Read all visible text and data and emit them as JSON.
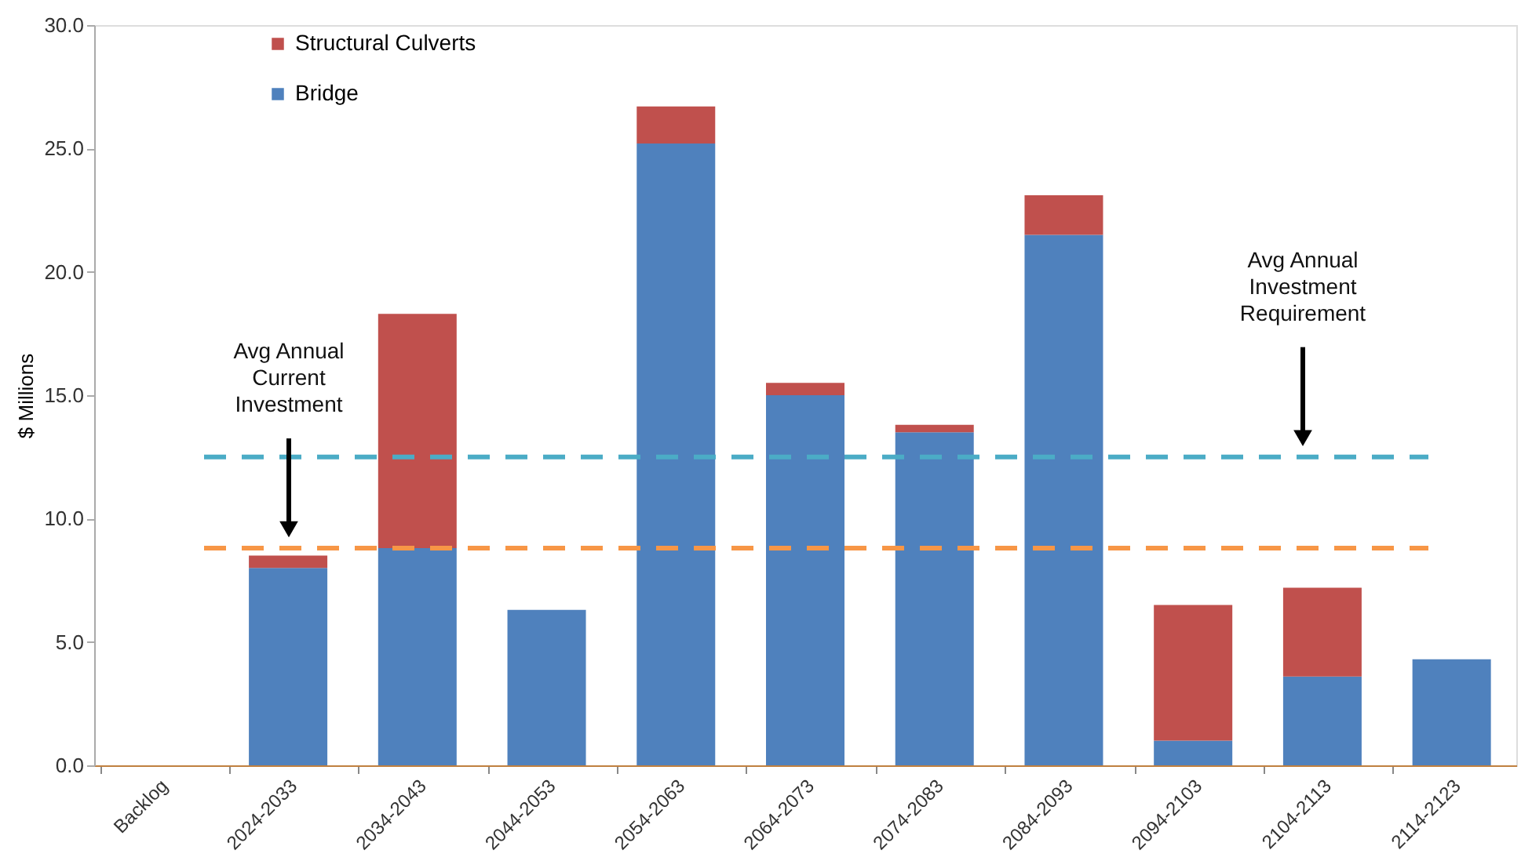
{
  "chart_data": {
    "type": "bar",
    "stacked": true,
    "ylabel": "$ Millions",
    "categories": [
      "Backlog",
      "2024-2033",
      "2034-2043",
      "2044-2053",
      "2054-2063",
      "2064-2073",
      "2074-2083",
      "2084-2093",
      "2094-2103",
      "2104-2113",
      "2114-2123"
    ],
    "series": [
      {
        "name": "Bridge",
        "color": "#4f81bd",
        "values": [
          0,
          8.0,
          8.8,
          6.3,
          25.2,
          15.0,
          13.5,
          21.5,
          1.0,
          3.6,
          4.3
        ]
      },
      {
        "name": "Structural Culverts",
        "color": "#c0504d",
        "values": [
          0,
          0.5,
          9.5,
          0,
          1.5,
          0.5,
          0.3,
          1.6,
          5.5,
          3.6,
          0
        ]
      }
    ],
    "ylim": [
      0,
      30
    ],
    "yticks": [
      {
        "value": 0,
        "label": "0.0"
      },
      {
        "value": 5,
        "label": "5.0"
      },
      {
        "value": 10,
        "label": "10.0"
      },
      {
        "value": 15,
        "label": "15.0"
      },
      {
        "value": 20,
        "label": "20.0"
      },
      {
        "value": 25,
        "label": "25.0"
      },
      {
        "value": 30,
        "label": "30.0"
      }
    ],
    "ref_lines": [
      {
        "axis": "y",
        "value": 12.5,
        "color": "#4bacc6",
        "line_style": "dashed"
      },
      {
        "axis": "y",
        "value": 8.8,
        "color": "#f79646",
        "line_style": "dashed"
      }
    ],
    "annotations": [
      "Avg Annual\nCurrent\nInvestment",
      "Avg Annual\nInvestment\nRequirement"
    ],
    "legend": "top left",
    "grid": false
  }
}
